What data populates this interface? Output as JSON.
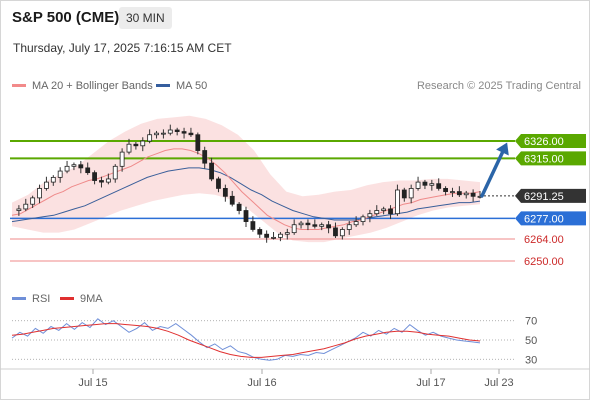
{
  "header": {
    "title": "S&P 500 (CME)",
    "interval": "30 MIN"
  },
  "timestamp": "Thursday, July 17, 2025 7:16:15 AM CET",
  "legend": {
    "ma_bb": "MA 20 + Bollinger Bands",
    "ma50": "MA 50",
    "rsi": "RSI",
    "rsi9": "9MA"
  },
  "credit": "Research © 2025 Trading Central",
  "colors": {
    "resistance": "#5aa800",
    "support": "#ef8a8a",
    "current": "#333333",
    "pivot": "#2b6fd6",
    "ma20_band": "#f7c9c9",
    "ma20": "#ef8a8a",
    "ma50": "#3a5f9a",
    "arrow": "#2b65a8",
    "rsi": "#6f8fd8",
    "rsi9": "#e03030"
  },
  "chart_data": [
    {
      "type": "line",
      "title": "S&P 500 (CME)",
      "subtitle": "30 MIN",
      "x_ticks": [
        "Jul 15",
        "Jul 16",
        "Jul 17",
        "Jul 23"
      ],
      "ylim": [
        6238,
        6352
      ],
      "levels": [
        {
          "value": 6326.0,
          "label": "6326.00",
          "kind": "resistance"
        },
        {
          "value": 6315.0,
          "label": "6315.00",
          "kind": "resistance"
        },
        {
          "value": 6291.25,
          "label": "6291.25",
          "kind": "current"
        },
        {
          "value": 6277.0,
          "label": "6277.00",
          "kind": "pivot"
        },
        {
          "value": 6264.0,
          "label": "6264.00",
          "kind": "support"
        },
        {
          "value": 6250.0,
          "label": "6250.00",
          "kind": "support"
        }
      ],
      "close_series": [
        6282,
        6283,
        6286,
        6290,
        6296,
        6300,
        6303,
        6307,
        6310,
        6311,
        6309,
        6306,
        6301,
        6300,
        6302,
        6310,
        6319,
        6324,
        6323,
        6326,
        6330,
        6331,
        6331,
        6333,
        6332,
        6331,
        6330,
        6320,
        6312,
        6302,
        6296,
        6291,
        6286,
        6282,
        6275,
        6270,
        6267,
        6265,
        6265,
        6267,
        6268,
        6273,
        6274,
        6273,
        6272,
        6273,
        6271,
        6266,
        6270,
        6273,
        6275,
        6278,
        6280,
        6282,
        6283,
        6280,
        6295,
        6290,
        6296,
        6300,
        6298,
        6299,
        6296,
        6294,
        6294,
        6292,
        6293,
        6291,
        6291
      ],
      "ma20": [
        6279,
        6280,
        6283,
        6286,
        6289,
        6292,
        6294,
        6297,
        6299,
        6301,
        6302,
        6304,
        6306,
        6308,
        6310,
        6313,
        6316,
        6318,
        6320,
        6321,
        6321,
        6320,
        6318,
        6315,
        6311,
        6306,
        6300,
        6294,
        6289,
        6284,
        6279,
        6276,
        6273,
        6271,
        6270,
        6270,
        6270,
        6271,
        6272,
        6273,
        6275,
        6276,
        6278,
        6280,
        6282,
        6284,
        6286,
        6287,
        6289,
        6290,
        6291,
        6292,
        6293,
        6293,
        6293,
        6294
      ],
      "ma50": [
        6275,
        6276,
        6277,
        6278,
        6279,
        6281,
        6283,
        6285,
        6288,
        6291,
        6294,
        6297,
        6300,
        6303,
        6305,
        6307,
        6308,
        6309,
        6309,
        6308,
        6306,
        6303,
        6299,
        6295,
        6292,
        6288,
        6285,
        6282,
        6280,
        6278,
        6277,
        6276,
        6276,
        6276,
        6277,
        6278,
        6279,
        6280,
        6281,
        6283,
        6284,
        6285,
        6286,
        6287,
        6287,
        6288
      ],
      "bollinger_upper": [
        6287,
        6292,
        6300,
        6305,
        6310,
        6318,
        6326,
        6332,
        6337,
        6340,
        6341,
        6342,
        6340,
        6336,
        6330,
        6320,
        6305,
        6294,
        6291,
        6292,
        6294,
        6295,
        6298,
        6300,
        6301,
        6301,
        6302,
        6302,
        6301,
        6300
      ],
      "bollinger_lower": [
        6272,
        6270,
        6268,
        6268,
        6270,
        6274,
        6278,
        6282,
        6285,
        6288,
        6290,
        6292,
        6293,
        6292,
        6289,
        6284,
        6276,
        6268,
        6263,
        6262,
        6262,
        6264,
        6266,
        6268,
        6271,
        6275,
        6279,
        6282,
        6284,
        6285,
        6286
      ],
      "projection": {
        "from": 6291.25,
        "to": 6326.0
      }
    },
    {
      "type": "line",
      "title": "RSI",
      "ylim": [
        22,
        78
      ],
      "y_ticks": [
        70,
        50,
        30
      ],
      "series": [
        {
          "name": "RSI",
          "values": [
            52,
            58,
            54,
            62,
            57,
            64,
            60,
            67,
            61,
            68,
            63,
            72,
            66,
            70,
            64,
            58,
            62,
            68,
            60,
            64,
            62,
            67,
            61,
            55,
            48,
            42,
            46,
            40,
            44,
            38,
            36,
            32,
            30,
            29,
            30,
            34,
            33,
            35,
            34,
            37,
            36,
            40,
            44,
            48,
            52,
            58,
            54,
            60,
            56,
            62,
            58,
            66,
            60,
            55,
            58,
            54,
            52,
            50,
            49,
            48,
            47
          ]
        },
        {
          "name": "9MA",
          "values": [
            55,
            56,
            58,
            60,
            62,
            63,
            64,
            65,
            66,
            67,
            67,
            66,
            65,
            64,
            62,
            59,
            55,
            50,
            46,
            42,
            38,
            35,
            33,
            32,
            32,
            33,
            34,
            35,
            37,
            39,
            41,
            44,
            47,
            51,
            54,
            56,
            58,
            59,
            59,
            58,
            56,
            55,
            54,
            52,
            50,
            49
          ]
        }
      ]
    }
  ]
}
